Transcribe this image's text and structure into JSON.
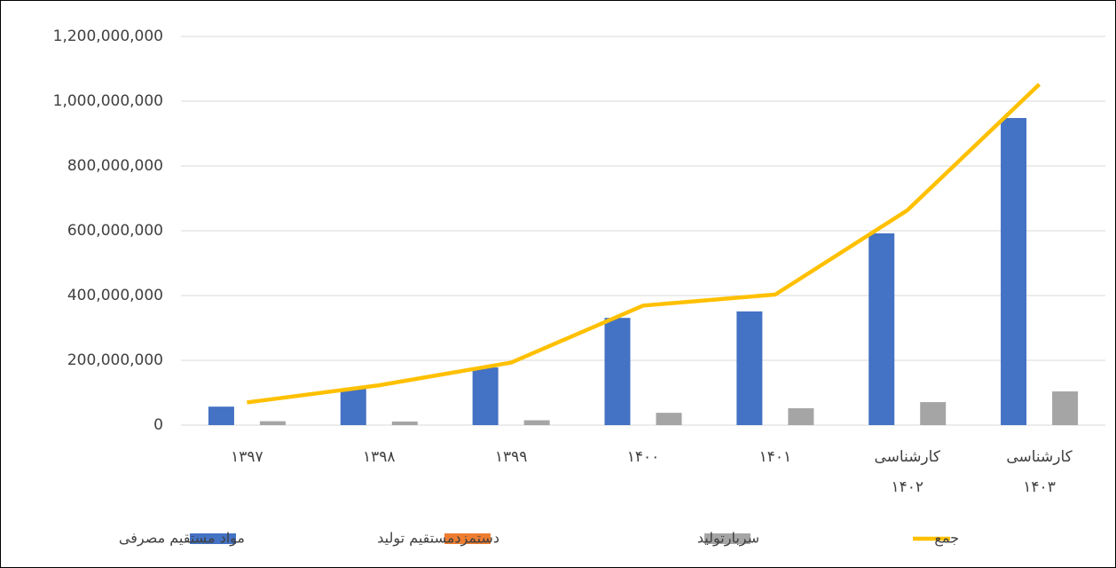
{
  "chart_data": {
    "type": "combo",
    "categories": [
      "۱۳۹۷",
      "۱۳۹۸",
      "۱۳۹۹",
      "۱۴۰۰",
      "۱۴۰۱",
      "کارشناسی ۱۴۰۲",
      "کارشناسی ۱۴۰۳"
    ],
    "series": [
      {
        "name": "مواد مستقیم مصرفی",
        "type": "bar",
        "color": "#4472c4",
        "values": [
          57000000,
          112000000,
          178000000,
          331000000,
          351000000,
          592000000,
          948000000
        ]
      },
      {
        "name": "دستمزدمستقیم تولید",
        "type": "bar",
        "color": "#ed7d31",
        "values": [
          0,
          0,
          0,
          0,
          0,
          0,
          0
        ]
      },
      {
        "name": "سربارتولید",
        "type": "bar",
        "color": "#a5a5a5",
        "values": [
          12000000,
          11000000,
          15000000,
          38000000,
          52000000,
          71000000,
          104000000
        ]
      },
      {
        "name": "جمع",
        "type": "line",
        "color": "#ffc000",
        "values": [
          70000000,
          123000000,
          193000000,
          369000000,
          403000000,
          663000000,
          1052000000
        ]
      }
    ],
    "ylim": [
      0,
      1200000000
    ],
    "yticks": [
      0,
      {
        "value": 200000000,
        "label": "200,000,000"
      },
      {
        "value": 400000000,
        "label": "400,000,000"
      },
      {
        "value": 600000000,
        "label": "600,000,000"
      },
      {
        "value": 800000000,
        "label": "800,000,000"
      },
      {
        "value": 1000000000,
        "label": "1,000,000,000"
      },
      {
        "value": 1200000000,
        "label": "1,200,000,000"
      }
    ],
    "grid": true,
    "legend": "bottom"
  }
}
